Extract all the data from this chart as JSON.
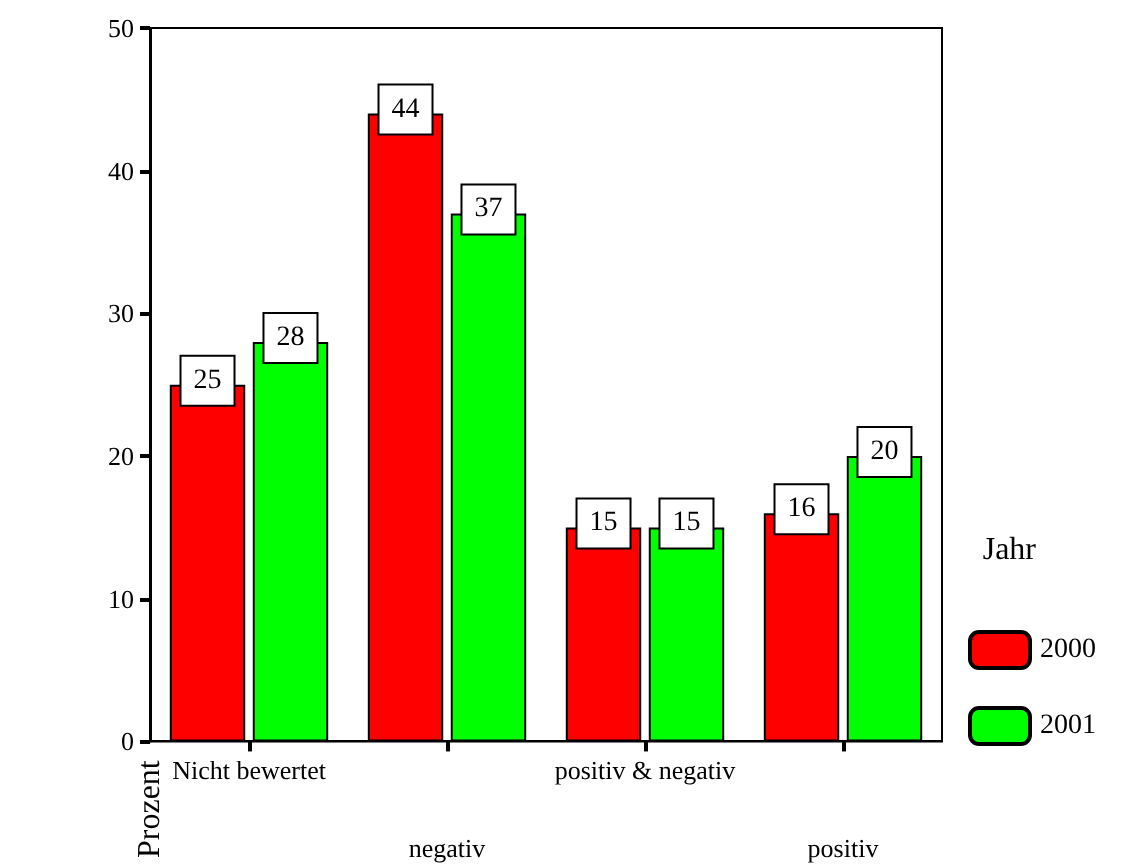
{
  "chart_data": {
    "type": "bar",
    "ylabel": "Prozent",
    "legend_title": "Jahr",
    "categories": [
      "Nicht bewertet",
      "negativ",
      "positiv & negativ",
      "positiv"
    ],
    "series": [
      {
        "name": "2000",
        "color": "#ff0000",
        "values": [
          25,
          44,
          15,
          16
        ]
      },
      {
        "name": "2001",
        "color": "#00ff00",
        "values": [
          28,
          37,
          15,
          20
        ]
      }
    ],
    "ylim": [
      0,
      50
    ],
    "yticks": [
      0,
      10,
      20,
      30,
      40,
      50
    ],
    "grid": false,
    "legend": "right",
    "data_labels": true
  }
}
